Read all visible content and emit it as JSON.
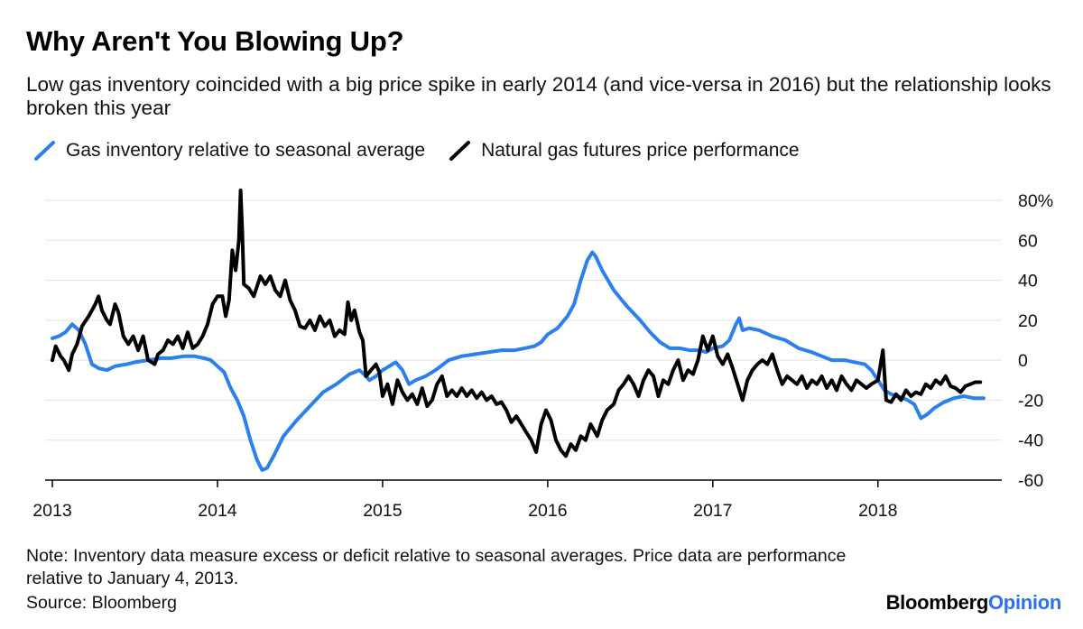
{
  "chart_data": {
    "type": "line",
    "title": "Why Aren't You Blowing Up?",
    "subtitle": "Low gas inventory coincided with a big price spike in early 2014 (and vice-versa in 2016) but the relationship looks broken this year",
    "xlabel": "",
    "ylabel": "",
    "xlim": [
      2013.0,
      2018.75
    ],
    "ylim": [
      -60,
      80
    ],
    "y_ticks": [
      80,
      60,
      40,
      20,
      0,
      -20,
      -40,
      -60
    ],
    "y_tick_labels": [
      "80%",
      "60",
      "40",
      "20",
      "0",
      "-20",
      "-40",
      "-60"
    ],
    "x_ticks": [
      2013,
      2014,
      2015,
      2016,
      2017,
      2018
    ],
    "x_tick_labels": [
      "2013",
      "2014",
      "2015",
      "2016",
      "2017",
      "2018"
    ],
    "grid": true,
    "legend_position": "top-left",
    "series": [
      {
        "name": "Gas inventory relative to seasonal average",
        "color": "#2b80f0",
        "points": [
          [
            2013.0,
            11
          ],
          [
            2013.04,
            12
          ],
          [
            2013.08,
            14
          ],
          [
            2013.12,
            18
          ],
          [
            2013.16,
            15
          ],
          [
            2013.2,
            8
          ],
          [
            2013.24,
            -2
          ],
          [
            2013.28,
            -4
          ],
          [
            2013.33,
            -5
          ],
          [
            2013.38,
            -3
          ],
          [
            2013.45,
            -2
          ],
          [
            2013.5,
            -1
          ],
          [
            2013.58,
            0
          ],
          [
            2013.66,
            1
          ],
          [
            2013.72,
            1
          ],
          [
            2013.8,
            2
          ],
          [
            2013.86,
            2
          ],
          [
            2013.92,
            1
          ],
          [
            2013.96,
            0
          ],
          [
            2014.0,
            -3
          ],
          [
            2014.04,
            -6
          ],
          [
            2014.08,
            -14
          ],
          [
            2014.12,
            -20
          ],
          [
            2014.16,
            -28
          ],
          [
            2014.2,
            -40
          ],
          [
            2014.24,
            -50
          ],
          [
            2014.27,
            -55
          ],
          [
            2014.3,
            -54
          ],
          [
            2014.34,
            -48
          ],
          [
            2014.4,
            -38
          ],
          [
            2014.48,
            -30
          ],
          [
            2014.56,
            -23
          ],
          [
            2014.64,
            -16
          ],
          [
            2014.72,
            -12
          ],
          [
            2014.8,
            -7
          ],
          [
            2014.86,
            -5
          ],
          [
            2014.9,
            -8
          ],
          [
            2014.92,
            -10
          ],
          [
            2014.96,
            -8
          ],
          [
            2015.0,
            -5
          ],
          [
            2015.04,
            -3
          ],
          [
            2015.08,
            -1
          ],
          [
            2015.12,
            -5
          ],
          [
            2015.16,
            -12
          ],
          [
            2015.2,
            -10
          ],
          [
            2015.26,
            -8
          ],
          [
            2015.32,
            -5
          ],
          [
            2015.4,
            0
          ],
          [
            2015.48,
            2
          ],
          [
            2015.56,
            3
          ],
          [
            2015.64,
            4
          ],
          [
            2015.72,
            5
          ],
          [
            2015.8,
            5
          ],
          [
            2015.86,
            6
          ],
          [
            2015.92,
            7
          ],
          [
            2015.96,
            9
          ],
          [
            2016.0,
            13
          ],
          [
            2016.06,
            16
          ],
          [
            2016.12,
            22
          ],
          [
            2016.16,
            28
          ],
          [
            2016.2,
            40
          ],
          [
            2016.24,
            50
          ],
          [
            2016.27,
            54
          ],
          [
            2016.29,
            52
          ],
          [
            2016.33,
            45
          ],
          [
            2016.4,
            35
          ],
          [
            2016.48,
            27
          ],
          [
            2016.56,
            20
          ],
          [
            2016.62,
            14
          ],
          [
            2016.68,
            9
          ],
          [
            2016.74,
            6
          ],
          [
            2016.8,
            6
          ],
          [
            2016.86,
            5
          ],
          [
            2016.92,
            5
          ],
          [
            2016.96,
            4
          ],
          [
            2017.0,
            6
          ],
          [
            2017.06,
            7
          ],
          [
            2017.1,
            10
          ],
          [
            2017.14,
            18
          ],
          [
            2017.16,
            21
          ],
          [
            2017.18,
            15
          ],
          [
            2017.22,
            16
          ],
          [
            2017.28,
            15
          ],
          [
            2017.36,
            12
          ],
          [
            2017.44,
            10
          ],
          [
            2017.52,
            6
          ],
          [
            2017.6,
            4
          ],
          [
            2017.66,
            2
          ],
          [
            2017.72,
            0
          ],
          [
            2017.8,
            0
          ],
          [
            2017.86,
            -1
          ],
          [
            2017.92,
            -2
          ],
          [
            2017.96,
            -5
          ],
          [
            2018.0,
            -10
          ],
          [
            2018.04,
            -15
          ],
          [
            2018.08,
            -17
          ],
          [
            2018.12,
            -18
          ],
          [
            2018.18,
            -20
          ],
          [
            2018.22,
            -22
          ],
          [
            2018.26,
            -29
          ],
          [
            2018.3,
            -27
          ],
          [
            2018.34,
            -24
          ],
          [
            2018.4,
            -21
          ],
          [
            2018.46,
            -19
          ],
          [
            2018.52,
            -18
          ],
          [
            2018.58,
            -19
          ],
          [
            2018.64,
            -19
          ]
        ]
      },
      {
        "name": "Natural gas futures price performance",
        "color": "#000000",
        "points": [
          [
            2013.0,
            0
          ],
          [
            2013.02,
            7
          ],
          [
            2013.05,
            2
          ],
          [
            2013.07,
            0
          ],
          [
            2013.1,
            -5
          ],
          [
            2013.12,
            3
          ],
          [
            2013.15,
            8
          ],
          [
            2013.18,
            17
          ],
          [
            2013.22,
            22
          ],
          [
            2013.26,
            28
          ],
          [
            2013.28,
            32
          ],
          [
            2013.3,
            25
          ],
          [
            2013.33,
            20
          ],
          [
            2013.35,
            18
          ],
          [
            2013.38,
            28
          ],
          [
            2013.4,
            24
          ],
          [
            2013.43,
            12
          ],
          [
            2013.46,
            8
          ],
          [
            2013.49,
            12
          ],
          [
            2013.52,
            5
          ],
          [
            2013.55,
            12
          ],
          [
            2013.58,
            0
          ],
          [
            2013.62,
            -2
          ],
          [
            2013.64,
            3
          ],
          [
            2013.67,
            5
          ],
          [
            2013.7,
            10
          ],
          [
            2013.73,
            8
          ],
          [
            2013.76,
            12
          ],
          [
            2013.79,
            6
          ],
          [
            2013.82,
            14
          ],
          [
            2013.85,
            6
          ],
          [
            2013.88,
            8
          ],
          [
            2013.91,
            12
          ],
          [
            2013.94,
            18
          ],
          [
            2013.97,
            28
          ],
          [
            2014.0,
            32
          ],
          [
            2014.03,
            32
          ],
          [
            2014.05,
            22
          ],
          [
            2014.07,
            30
          ],
          [
            2014.09,
            55
          ],
          [
            2014.11,
            45
          ],
          [
            2014.13,
            60
          ],
          [
            2014.14,
            85
          ],
          [
            2014.15,
            65
          ],
          [
            2014.16,
            38
          ],
          [
            2014.19,
            36
          ],
          [
            2014.22,
            32
          ],
          [
            2014.26,
            42
          ],
          [
            2014.29,
            38
          ],
          [
            2014.32,
            42
          ],
          [
            2014.35,
            35
          ],
          [
            2014.38,
            32
          ],
          [
            2014.41,
            40
          ],
          [
            2014.44,
            30
          ],
          [
            2014.47,
            25
          ],
          [
            2014.5,
            17
          ],
          [
            2014.53,
            16
          ],
          [
            2014.56,
            20
          ],
          [
            2014.59,
            15
          ],
          [
            2014.62,
            22
          ],
          [
            2014.65,
            17
          ],
          [
            2014.68,
            20
          ],
          [
            2014.71,
            12
          ],
          [
            2014.74,
            15
          ],
          [
            2014.77,
            13
          ],
          [
            2014.79,
            29
          ],
          [
            2014.81,
            20
          ],
          [
            2014.83,
            25
          ],
          [
            2014.86,
            14
          ],
          [
            2014.88,
            10
          ],
          [
            2014.9,
            -8
          ],
          [
            2014.93,
            -5
          ],
          [
            2014.96,
            -2
          ],
          [
            2014.98,
            -6
          ],
          [
            2015.0,
            -18
          ],
          [
            2015.03,
            -12
          ],
          [
            2015.06,
            -22
          ],
          [
            2015.09,
            -10
          ],
          [
            2015.12,
            -16
          ],
          [
            2015.15,
            -20
          ],
          [
            2015.18,
            -17
          ],
          [
            2015.21,
            -22
          ],
          [
            2015.24,
            -14
          ],
          [
            2015.27,
            -23
          ],
          [
            2015.3,
            -20
          ],
          [
            2015.33,
            -12
          ],
          [
            2015.36,
            -8
          ],
          [
            2015.39,
            -18
          ],
          [
            2015.42,
            -15
          ],
          [
            2015.45,
            -18
          ],
          [
            2015.48,
            -14
          ],
          [
            2015.51,
            -18
          ],
          [
            2015.54,
            -15
          ],
          [
            2015.57,
            -19
          ],
          [
            2015.6,
            -16
          ],
          [
            2015.63,
            -20
          ],
          [
            2015.66,
            -18
          ],
          [
            2015.69,
            -22
          ],
          [
            2015.72,
            -21
          ],
          [
            2015.75,
            -25
          ],
          [
            2015.78,
            -31
          ],
          [
            2015.81,
            -28
          ],
          [
            2015.84,
            -32
          ],
          [
            2015.87,
            -36
          ],
          [
            2015.9,
            -40
          ],
          [
            2015.93,
            -46
          ],
          [
            2015.96,
            -32
          ],
          [
            2015.99,
            -25
          ],
          [
            2016.02,
            -30
          ],
          [
            2016.05,
            -40
          ],
          [
            2016.08,
            -45
          ],
          [
            2016.11,
            -48
          ],
          [
            2016.14,
            -42
          ],
          [
            2016.17,
            -45
          ],
          [
            2016.2,
            -38
          ],
          [
            2016.23,
            -40
          ],
          [
            2016.26,
            -32
          ],
          [
            2016.3,
            -38
          ],
          [
            2016.33,
            -30
          ],
          [
            2016.36,
            -25
          ],
          [
            2016.4,
            -22
          ],
          [
            2016.43,
            -15
          ],
          [
            2016.46,
            -12
          ],
          [
            2016.49,
            -8
          ],
          [
            2016.52,
            -12
          ],
          [
            2016.55,
            -18
          ],
          [
            2016.58,
            -10
          ],
          [
            2016.61,
            -5
          ],
          [
            2016.64,
            -8
          ],
          [
            2016.67,
            -18
          ],
          [
            2016.7,
            -10
          ],
          [
            2016.73,
            -12
          ],
          [
            2016.76,
            -5
          ],
          [
            2016.79,
            0
          ],
          [
            2016.82,
            -10
          ],
          [
            2016.85,
            -5
          ],
          [
            2016.88,
            -7
          ],
          [
            2016.91,
            0
          ],
          [
            2016.94,
            12
          ],
          [
            2016.97,
            5
          ],
          [
            2017.0,
            12
          ],
          [
            2017.03,
            2
          ],
          [
            2017.06,
            -2
          ],
          [
            2017.09,
            3
          ],
          [
            2017.12,
            -4
          ],
          [
            2017.15,
            -12
          ],
          [
            2017.18,
            -20
          ],
          [
            2017.21,
            -10
          ],
          [
            2017.24,
            -5
          ],
          [
            2017.27,
            -2
          ],
          [
            2017.3,
            0
          ],
          [
            2017.33,
            -2
          ],
          [
            2017.36,
            3
          ],
          [
            2017.39,
            -5
          ],
          [
            2017.42,
            -12
          ],
          [
            2017.45,
            -8
          ],
          [
            2017.48,
            -10
          ],
          [
            2017.51,
            -12
          ],
          [
            2017.54,
            -8
          ],
          [
            2017.57,
            -14
          ],
          [
            2017.6,
            -10
          ],
          [
            2017.63,
            -12
          ],
          [
            2017.66,
            -8
          ],
          [
            2017.69,
            -14
          ],
          [
            2017.72,
            -10
          ],
          [
            2017.75,
            -15
          ],
          [
            2017.78,
            -8
          ],
          [
            2017.81,
            -12
          ],
          [
            2017.84,
            -15
          ],
          [
            2017.87,
            -10
          ],
          [
            2017.9,
            -12
          ],
          [
            2017.93,
            -14
          ],
          [
            2017.96,
            -12
          ],
          [
            2018.0,
            -10
          ],
          [
            2018.03,
            5
          ],
          [
            2018.05,
            -20
          ],
          [
            2018.08,
            -21
          ],
          [
            2018.11,
            -17
          ],
          [
            2018.14,
            -20
          ],
          [
            2018.17,
            -15
          ],
          [
            2018.2,
            -18
          ],
          [
            2018.23,
            -16
          ],
          [
            2018.26,
            -17
          ],
          [
            2018.29,
            -12
          ],
          [
            2018.32,
            -14
          ],
          [
            2018.35,
            -10
          ],
          [
            2018.38,
            -12
          ],
          [
            2018.41,
            -8
          ],
          [
            2018.44,
            -13
          ],
          [
            2018.47,
            -14
          ],
          [
            2018.5,
            -16
          ],
          [
            2018.53,
            -13
          ],
          [
            2018.56,
            -12
          ],
          [
            2018.59,
            -11
          ],
          [
            2018.62,
            -11
          ]
        ]
      }
    ]
  },
  "note": "Note: Inventory data measure excess or deficit relative to seasonal averages. Price data are performance relative to January 4, 2013.",
  "source": "Source: Bloomberg",
  "brand": {
    "part1": "Bloomberg",
    "part2": "Opinion",
    "color1": "#000000",
    "color2": "#2b70f0"
  }
}
